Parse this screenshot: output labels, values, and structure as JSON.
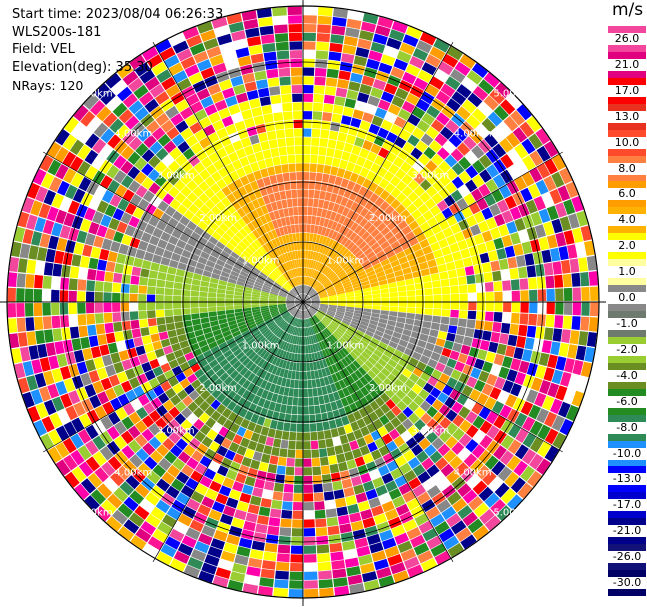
{
  "header": {
    "start_time": "Start time: 2023/08/04 06:26:33",
    "instrument": "WLS200s-181",
    "field": "Field: VEL",
    "elevation": "Elevation(deg): 35.30",
    "nrays": "NRays: 120"
  },
  "colorbar": {
    "unit": "m/s",
    "labels": [
      "26.0",
      "21.0",
      "17.0",
      "13.0",
      "10.0",
      "8.0",
      "6.0",
      "4.0",
      "2.0",
      "1.0",
      "0.0",
      "-1.0",
      "-2.0",
      "-4.0",
      "-6.0",
      "-8.0",
      "-10.0",
      "-13.0",
      "-17.0",
      "-21.0",
      "-26.0",
      "-30.0"
    ],
    "colors": [
      "#f2479d",
      "#e0007f",
      "#ff0000",
      "#e8311f",
      "#ff4a2c",
      "#ff8040",
      "#ff9d00",
      "#ffb300",
      "#ffff00",
      "#ffffa0",
      "#888888",
      "#6e7a6e",
      "#9acd32",
      "#6b8e23",
      "#228b22",
      "#2e8b57",
      "#1e90ff",
      "#0000ff",
      "#0000cd",
      "#00008b",
      "#111177",
      "#000066"
    ]
  },
  "range_rings": {
    "labels": [
      "1.00km",
      "2.00km",
      "3.00km",
      "4.00km",
      "5.00km",
      "1.00km",
      "2.00km",
      "3.00km",
      "4.00km",
      "5.00km",
      "1.00km",
      "2.00km",
      "3.00km",
      "4.00km",
      "5.00km",
      "1.00km",
      "2.00km",
      "3.00km",
      "4.00km",
      "5.00km"
    ]
  }
}
